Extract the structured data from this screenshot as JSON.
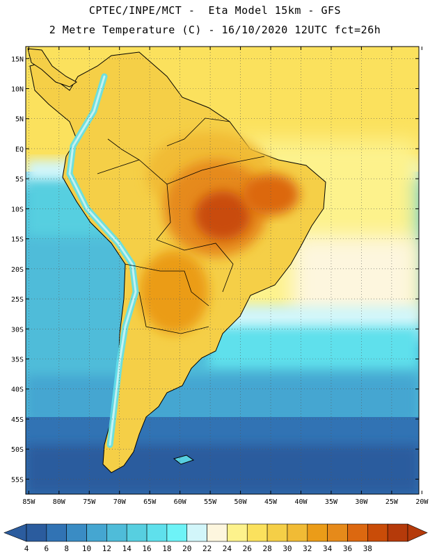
{
  "header": {
    "line1": "CPTEC/INPE/MCT -  Eta Model 15km - GFS",
    "line2": "2 Metre Temperature (C) - 16/10/2020 12UTC fct=26h"
  },
  "map": {
    "lat_labels": [
      "15N",
      "10N",
      "5N",
      "EQ",
      "5S",
      "10S",
      "15S",
      "20S",
      "25S",
      "30S",
      "35S",
      "40S",
      "45S",
      "50S",
      "55S"
    ],
    "lon_labels": [
      "85W",
      "80W",
      "75W",
      "70W",
      "65W",
      "60W",
      "55W",
      "50W",
      "45W",
      "40W",
      "35W",
      "30W",
      "25W",
      "20W"
    ],
    "lat_range": [
      17,
      -57.5
    ],
    "lon_range": [
      -85.5,
      -20.5
    ]
  },
  "colorbar": {
    "levels": [
      "4",
      "6",
      "8",
      "10",
      "12",
      "14",
      "16",
      "18",
      "20",
      "22",
      "24",
      "26",
      "28",
      "30",
      "32",
      "34",
      "36",
      "38"
    ],
    "colors": [
      "#2b5c9e",
      "#3173b4",
      "#3a8cc4",
      "#45a6d1",
      "#4fbcd9",
      "#57cfe0",
      "#5fe0ec",
      "#6ef3f7",
      "#d2f6fa",
      "#fdf6de",
      "#fdf28c",
      "#fbe15d",
      "#f5cf47",
      "#f1bb35",
      "#eb9c18",
      "#e68a1a",
      "#dc6810",
      "#c94c08",
      "#b53a0a"
    ]
  }
}
